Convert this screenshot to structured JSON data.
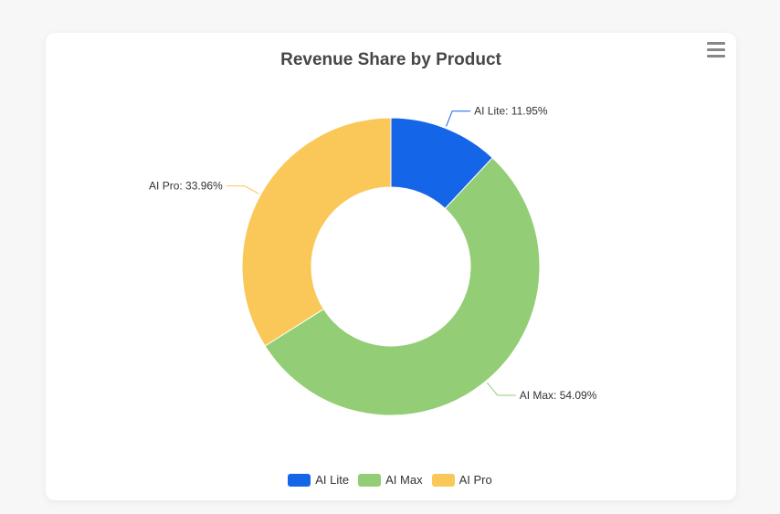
{
  "chart_data": {
    "type": "pie",
    "variant": "donut",
    "title": "Revenue Share by Product",
    "categories": [
      "AI Lite",
      "AI Max",
      "AI Pro"
    ],
    "values": [
      11.95,
      54.09,
      33.96
    ],
    "labels": [
      "AI Lite: 11.95%",
      "AI Max: 54.09%",
      "AI Pro: 33.96%"
    ],
    "colors": [
      "#1565e8",
      "#93cd76",
      "#fac858"
    ],
    "legend_position": "bottom-center"
  },
  "toolbar": {
    "menu_icon": "hamburger-menu-icon"
  }
}
